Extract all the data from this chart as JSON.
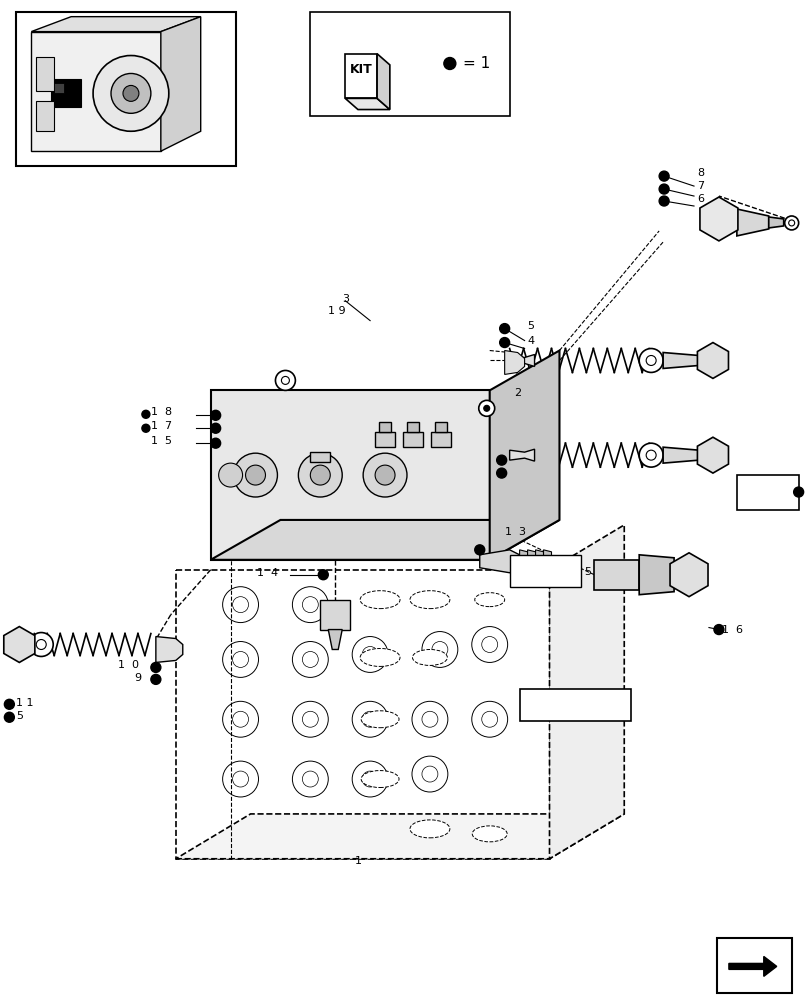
{
  "bg_color": "#ffffff",
  "lc": "#000000",
  "fig_w": 8.12,
  "fig_h": 10.0,
  "dpi": 100
}
